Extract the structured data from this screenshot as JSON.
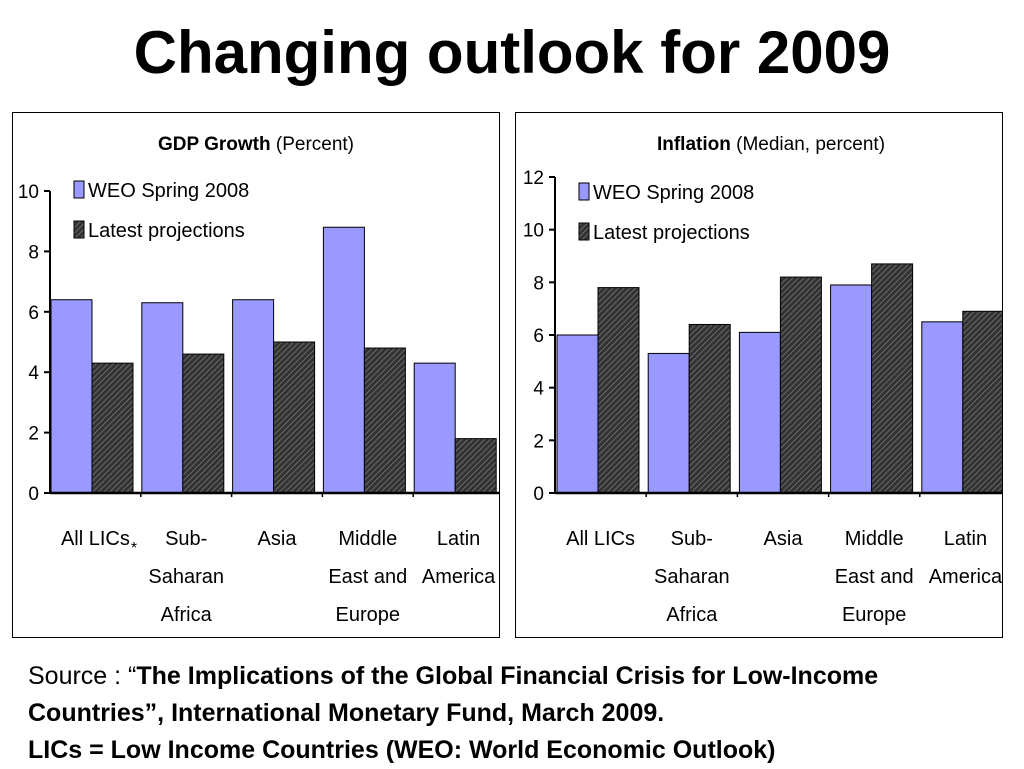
{
  "slide": {
    "title": "Changing outlook for 2009"
  },
  "source": {
    "prefix": "Source : “",
    "citation": "The Implications of the Global Financial Crisis for Low-Income Countries”, International Monetary Fund, March 2009.",
    "note": "LICs = Low Income Countries (WEO: World Economic Outlook)"
  },
  "colors": {
    "weo": "#9999ff",
    "latest": "#333333",
    "axis": "#000000"
  },
  "chart_data": [
    {
      "type": "bar",
      "title": "GDP Growth",
      "subtitle": "(Percent)",
      "categories": [
        "All LICs",
        "Sub-Saharan Africa",
        "Asia",
        "Middle East and Europe",
        "Latin America"
      ],
      "category_lines": [
        [
          "All LICs"
        ],
        [
          "Sub-",
          "Saharan",
          "Africa"
        ],
        [
          "Asia"
        ],
        [
          "Middle",
          "East and",
          "Europe"
        ],
        [
          "Latin",
          "America"
        ]
      ],
      "annotation": "*",
      "series": [
        {
          "name": "WEO Spring 2008",
          "values": [
            6.4,
            6.3,
            6.4,
            8.8,
            4.3
          ]
        },
        {
          "name": "Latest projections",
          "values": [
            4.3,
            4.6,
            5.0,
            4.8,
            1.8
          ]
        }
      ],
      "ylim": [
        0,
        10
      ],
      "yticks": [
        0,
        2,
        4,
        6,
        8,
        10
      ],
      "legend": "top-left",
      "grid": false
    },
    {
      "type": "bar",
      "title": "Inflation",
      "subtitle": "(Median, percent)",
      "categories": [
        "All LICs",
        "Sub-Saharan Africa",
        "Asia",
        "Middle East and Europe",
        "Latin America"
      ],
      "category_lines": [
        [
          "All LICs"
        ],
        [
          "Sub-",
          "Saharan",
          "Africa"
        ],
        [
          "Asia"
        ],
        [
          "Middle",
          "East and",
          "Europe"
        ],
        [
          "Latin",
          "America"
        ]
      ],
      "series": [
        {
          "name": "WEO Spring 2008",
          "values": [
            6.0,
            5.3,
            6.1,
            7.9,
            6.5
          ]
        },
        {
          "name": "Latest projections",
          "values": [
            7.8,
            6.4,
            8.2,
            8.7,
            6.9
          ]
        }
      ],
      "ylim": [
        0,
        12
      ],
      "yticks": [
        0,
        2,
        4,
        6,
        8,
        10,
        12
      ],
      "legend": "top-left",
      "grid": false
    }
  ]
}
